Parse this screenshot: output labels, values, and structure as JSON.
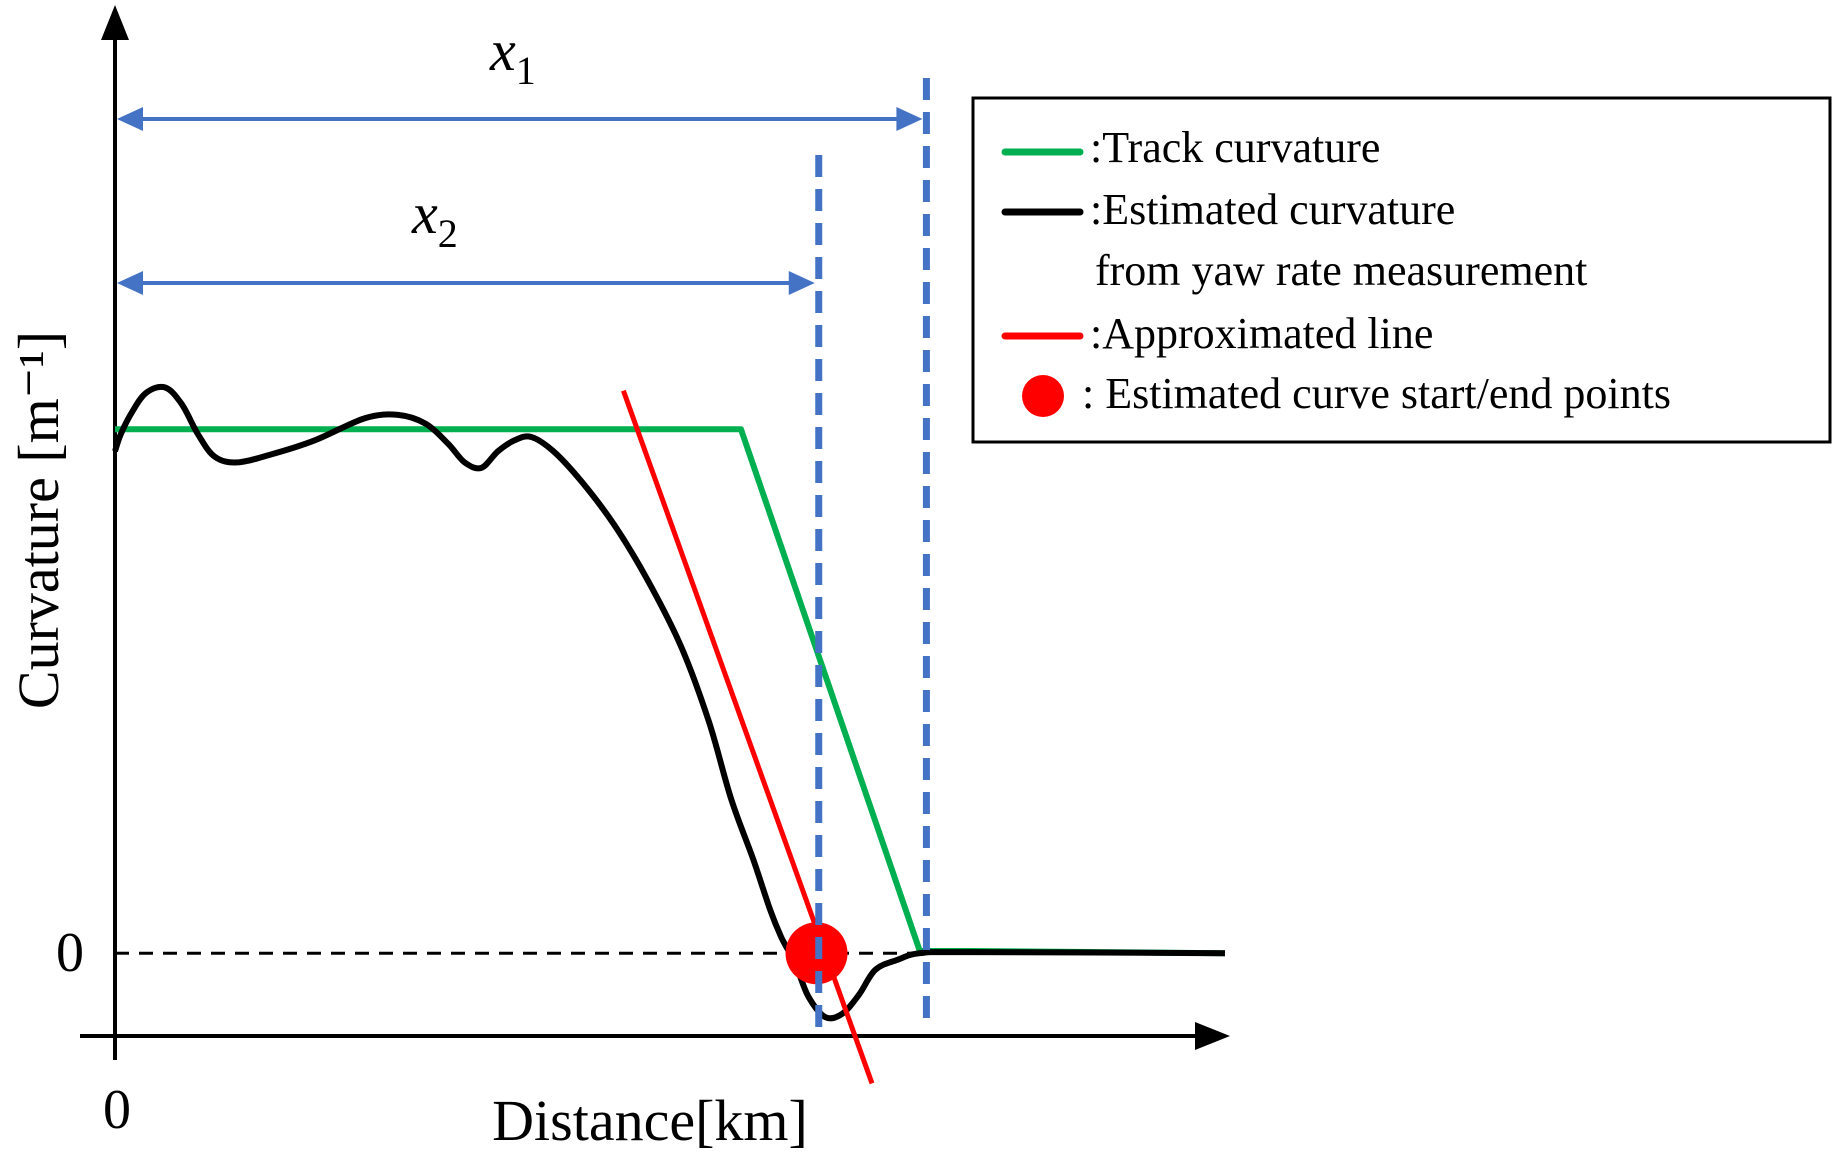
{
  "chart_data": {
    "type": "line",
    "xlabel": "Distance[km]",
    "ylabel": "Curvature [m⁻¹]",
    "x_tick_labels": [
      "0"
    ],
    "y_tick_labels": [
      "0"
    ],
    "grid": false,
    "legend_position": "top-right",
    "legend": [
      {
        "key": "track",
        "symbol": "line",
        "label": ":Track curvature",
        "color": "#00b050"
      },
      {
        "key": "estimated",
        "symbol": "line",
        "label": ":Estimated curvature",
        "label_line2": "from yaw rate measurement",
        "color": "#000000"
      },
      {
        "key": "approx",
        "symbol": "line",
        "label": ":Approximated line",
        "color": "#ff0000"
      },
      {
        "key": "point",
        "symbol": "dot",
        "label": ": Estimated curve start/end points",
        "color": "#ff0000"
      }
    ],
    "annotations": {
      "x1_main": "x",
      "x1_sub": "1",
      "x2_main": "x",
      "x2_sub": "2",
      "arrow_color": "#4472c4",
      "dashed_color": "#4472c4"
    },
    "xlim": [
      0,
      1000
    ],
    "ylim": [
      -95,
      565
    ],
    "series": [
      {
        "key": "track",
        "color": "#00b050",
        "points": [
          [
            0,
            475
          ],
          [
            564,
            475
          ],
          [
            725,
            2
          ],
          [
            770,
            2
          ],
          [
            1000,
            0
          ]
        ]
      },
      {
        "key": "estimated",
        "color": "#000000",
        "points": [
          [
            0,
            455
          ],
          [
            5,
            470
          ],
          [
            15,
            490
          ],
          [
            28,
            508
          ],
          [
            45,
            513
          ],
          [
            60,
            498
          ],
          [
            75,
            470
          ],
          [
            90,
            450
          ],
          [
            110,
            445
          ],
          [
            140,
            452
          ],
          [
            180,
            465
          ],
          [
            225,
            485
          ],
          [
            255,
            488
          ],
          [
            280,
            480
          ],
          [
            300,
            462
          ],
          [
            315,
            445
          ],
          [
            330,
            440
          ],
          [
            345,
            455
          ],
          [
            360,
            465
          ],
          [
            375,
            468
          ],
          [
            395,
            455
          ],
          [
            420,
            428
          ],
          [
            450,
            388
          ],
          [
            480,
            338
          ],
          [
            510,
            278
          ],
          [
            535,
            210
          ],
          [
            555,
            140
          ],
          [
            575,
            85
          ],
          [
            590,
            40
          ],
          [
            600,
            15
          ],
          [
            608,
            0
          ],
          [
            615,
            -15
          ],
          [
            625,
            -40
          ],
          [
            640,
            -58
          ],
          [
            655,
            -55
          ],
          [
            670,
            -38
          ],
          [
            685,
            -15
          ],
          [
            705,
            -6
          ],
          [
            725,
            0
          ],
          [
            770,
            1
          ],
          [
            1000,
            0
          ]
        ]
      },
      {
        "key": "approx",
        "color": "#ff0000",
        "points": [
          [
            458,
            510
          ],
          [
            682,
            -118
          ]
        ]
      }
    ],
    "estimated_points": [
      [
        632,
        0
      ]
    ],
    "x1": 731,
    "x2": 634
  }
}
